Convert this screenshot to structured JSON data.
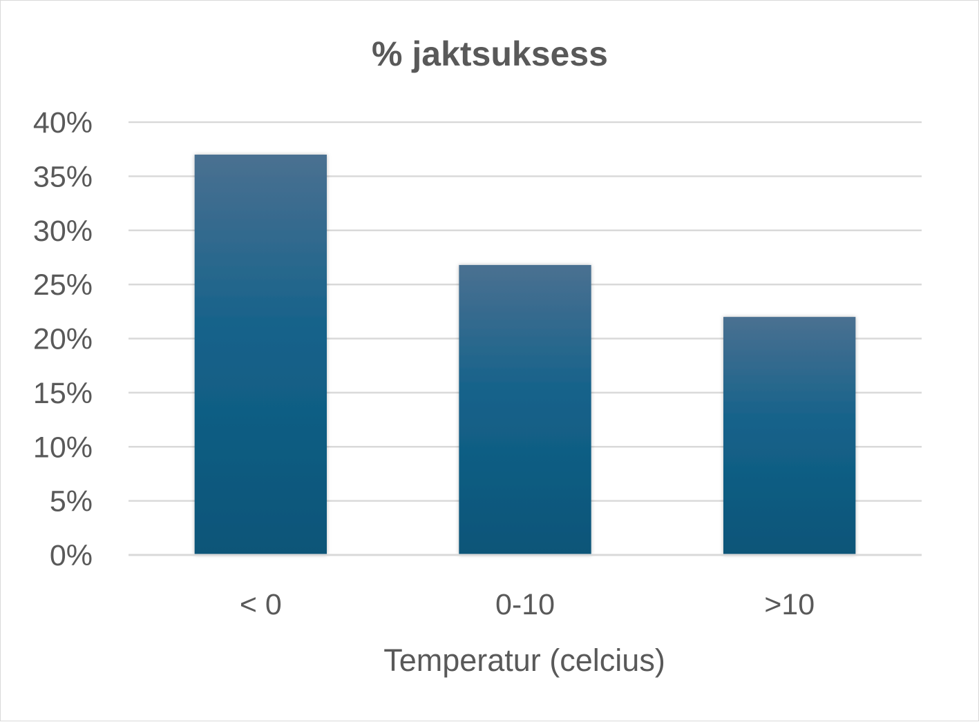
{
  "chart_data": {
    "type": "bar",
    "title": "% jaktsuksess",
    "xlabel": "Temperatur (celcius)",
    "ylabel": "",
    "categories": [
      "< 0",
      "0-10",
      ">10"
    ],
    "series": [
      {
        "values": [
          0.37,
          0.268,
          0.22
        ]
      }
    ],
    "ylim": [
      0,
      0.4
    ],
    "yticks": [
      0,
      0.05,
      0.1,
      0.15,
      0.2,
      0.25,
      0.3,
      0.35,
      0.4
    ],
    "ytick_labels": [
      "0%",
      "5%",
      "10%",
      "15%",
      "20%",
      "25%",
      "30%",
      "35%",
      "40%"
    ],
    "grid": true,
    "legend": "none",
    "colors": {
      "bar_top": "#4a7091",
      "bar_mid": "#14628a",
      "bar_bottom": "#0b5578",
      "gridline": "#d9d9d9",
      "axis_line": "#d9d9d9",
      "text": "#595959"
    }
  }
}
